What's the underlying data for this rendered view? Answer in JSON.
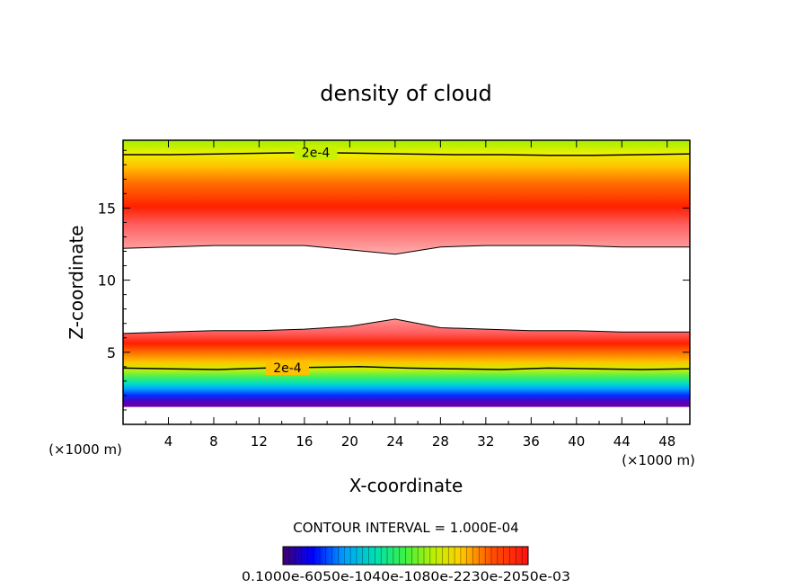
{
  "chart_data": {
    "type": "heatmap",
    "title": "density of cloud",
    "xlabel": "X-coordinate",
    "ylabel": "Z-coordinate",
    "x_unit": "(×1000 m)",
    "y_unit": "(×1000 m)",
    "xlim": [
      0,
      50
    ],
    "ylim": [
      0,
      19.7
    ],
    "x_ticks": [
      "4",
      "8",
      "12",
      "16",
      "20",
      "24",
      "28",
      "32",
      "36",
      "40",
      "44",
      "48"
    ],
    "y_ticks": [
      "5",
      "10",
      "15"
    ],
    "contour_label": "2e-4",
    "contour_interval_text": "CONTOUR INTERVAL = 1.000E-04",
    "colorbar_label_text": "0.1000e-6050e-1040e-1080e-2230e-2050e-03",
    "contours": [
      {
        "label": "2e-4",
        "z": [
          18.7,
          18.7,
          18.75,
          18.8,
          18.85,
          18.8,
          18.75,
          18.7,
          18.7,
          18.65,
          18.65,
          18.7,
          18.75
        ]
      },
      {
        "label": "2e-4",
        "z": [
          3.9,
          3.85,
          3.8,
          3.9,
          3.95,
          4.0,
          3.9,
          3.85,
          3.8,
          3.9,
          3.85,
          3.8,
          3.85
        ]
      }
    ],
    "cloud_free_region": {
      "upper_edge_z": [
        12.2,
        12.3,
        12.4,
        12.4,
        12.4,
        12.1,
        11.8,
        12.3,
        12.4,
        12.4,
        12.4,
        12.3,
        12.3
      ],
      "lower_edge_z": [
        6.3,
        6.4,
        6.5,
        6.5,
        6.6,
        6.8,
        7.3,
        6.7,
        6.6,
        6.5,
        6.5,
        6.4,
        6.4
      ],
      "x": [
        0,
        4,
        8,
        12,
        16,
        20,
        24,
        28,
        32,
        36,
        40,
        44,
        50
      ]
    }
  }
}
